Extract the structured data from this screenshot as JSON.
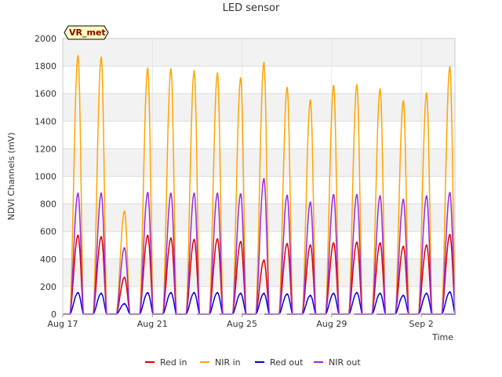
{
  "chart_data": {
    "type": "line",
    "title": "LED sensor",
    "xlabel": "Time",
    "ylabel": "NDVI Channels (mV)",
    "ylim": [
      0,
      2000
    ],
    "yticks": [
      0,
      200,
      400,
      600,
      800,
      1000,
      1200,
      1400,
      1600,
      1800,
      2000
    ],
    "xlim": [
      0,
      17.5
    ],
    "xticks": [
      {
        "value": 0,
        "label": "Aug 17"
      },
      {
        "value": 4,
        "label": "Aug 21"
      },
      {
        "value": 8,
        "label": "Aug 25"
      },
      {
        "value": 12,
        "label": "Aug 29"
      },
      {
        "value": 16,
        "label": "Sep 2"
      }
    ],
    "grid": true,
    "legend_position": "bottom",
    "badge": "VR_met",
    "colors": {
      "red_in": "#dd0000",
      "nir_in": "#ffa500",
      "red_out": "#0000dd",
      "nir_out": "#9a2be2"
    },
    "daily_peaks": {
      "days": [
        "Aug 17",
        "Aug 18",
        "Aug 19",
        "Aug 20",
        "Aug 21",
        "Aug 22",
        "Aug 23",
        "Aug 24",
        "Aug 25",
        "Aug 26",
        "Aug 27",
        "Aug 28",
        "Aug 29",
        "Aug 30",
        "Aug 31",
        "Sep 1",
        "Sep 2",
        "Sep 3"
      ],
      "nir_in": [
        1870,
        1860,
        745,
        1780,
        1775,
        1760,
        1745,
        1710,
        1820,
        1640,
        1550,
        1655,
        1660,
        1630,
        1545,
        1600,
        1790,
        0
      ],
      "nir_out": [
        875,
        875,
        480,
        880,
        875,
        875,
        875,
        870,
        980,
        860,
        810,
        865,
        865,
        855,
        830,
        855,
        880,
        0
      ],
      "red_in": [
        570,
        560,
        265,
        570,
        550,
        540,
        545,
        525,
        390,
        510,
        500,
        515,
        520,
        515,
        490,
        500,
        575,
        0
      ],
      "red_out": [
        155,
        150,
        75,
        155,
        155,
        155,
        155,
        150,
        150,
        145,
        135,
        150,
        155,
        150,
        135,
        150,
        160,
        0
      ]
    },
    "series": [
      {
        "name": "Red in",
        "key": "red_in"
      },
      {
        "name": "NIR in",
        "key": "nir_in"
      },
      {
        "name": "Red out",
        "key": "red_out"
      },
      {
        "name": "NIR out",
        "key": "nir_out"
      }
    ]
  }
}
